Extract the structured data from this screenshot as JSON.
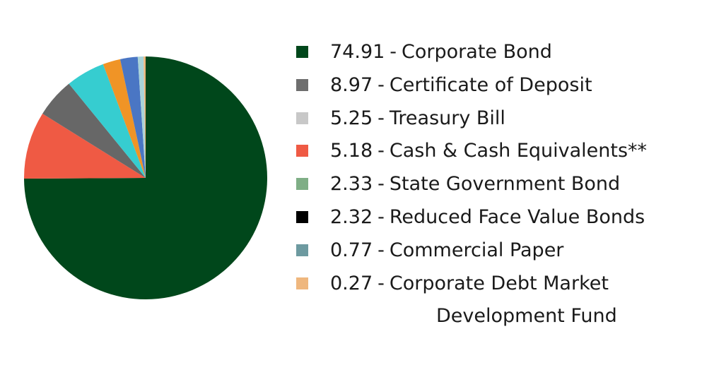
{
  "chart_data": {
    "type": "pie",
    "title": "",
    "start_angle_deg": 0,
    "direction": "clockwise",
    "slices": [
      {
        "value": 74.91,
        "label": "Corporate Bond",
        "color": "#00471b",
        "legend_color": "#00471b"
      },
      {
        "value": 8.97,
        "label": "Certificate of Deposit",
        "color": "#ef5a44",
        "legend_color": "#6e6e6e"
      },
      {
        "value": 5.25,
        "label": "Treasury Bill",
        "color": "#676767",
        "legend_color": "#c8c8c8"
      },
      {
        "value": 5.18,
        "label": "Cash & Cash Equivalents**",
        "color": "#36cdd0",
        "legend_color": "#ef5a44"
      },
      {
        "value": 2.33,
        "label": "State Government Bond",
        "color": "#f09426",
        "legend_color": "#7fae86"
      },
      {
        "value": 2.32,
        "label": "Reduced Face Value Bonds",
        "color": "#4a76c4",
        "legend_color": "#000000"
      },
      {
        "value": 0.77,
        "label": "Commercial Paper",
        "color": "#a9d3d8",
        "legend_color": "#6d9aa0"
      },
      {
        "value": 0.27,
        "label": "Corporate Debt Market Development Fund",
        "color": "#efb77e",
        "legend_color": "#efb77e"
      }
    ],
    "legend": {
      "placement": "right",
      "separator": "-",
      "items": [
        {
          "value": "74.91",
          "label": "Corporate Bond",
          "label_cont": ""
        },
        {
          "value": "8.97",
          "label": "Certificate of Deposit",
          "label_cont": ""
        },
        {
          "value": "5.25",
          "label": "Treasury Bill",
          "label_cont": ""
        },
        {
          "value": "5.18",
          "label": "Cash & Cash Equivalents**",
          "label_cont": ""
        },
        {
          "value": "2.33",
          "label": "State Government Bond",
          "label_cont": ""
        },
        {
          "value": "2.32",
          "label": "Reduced Face Value Bonds",
          "label_cont": ""
        },
        {
          "value": "0.77",
          "label": "Commercial Paper",
          "label_cont": ""
        },
        {
          "value": "0.27",
          "label": "Corporate Debt Market",
          "label_cont": "Development Fund"
        }
      ]
    }
  }
}
